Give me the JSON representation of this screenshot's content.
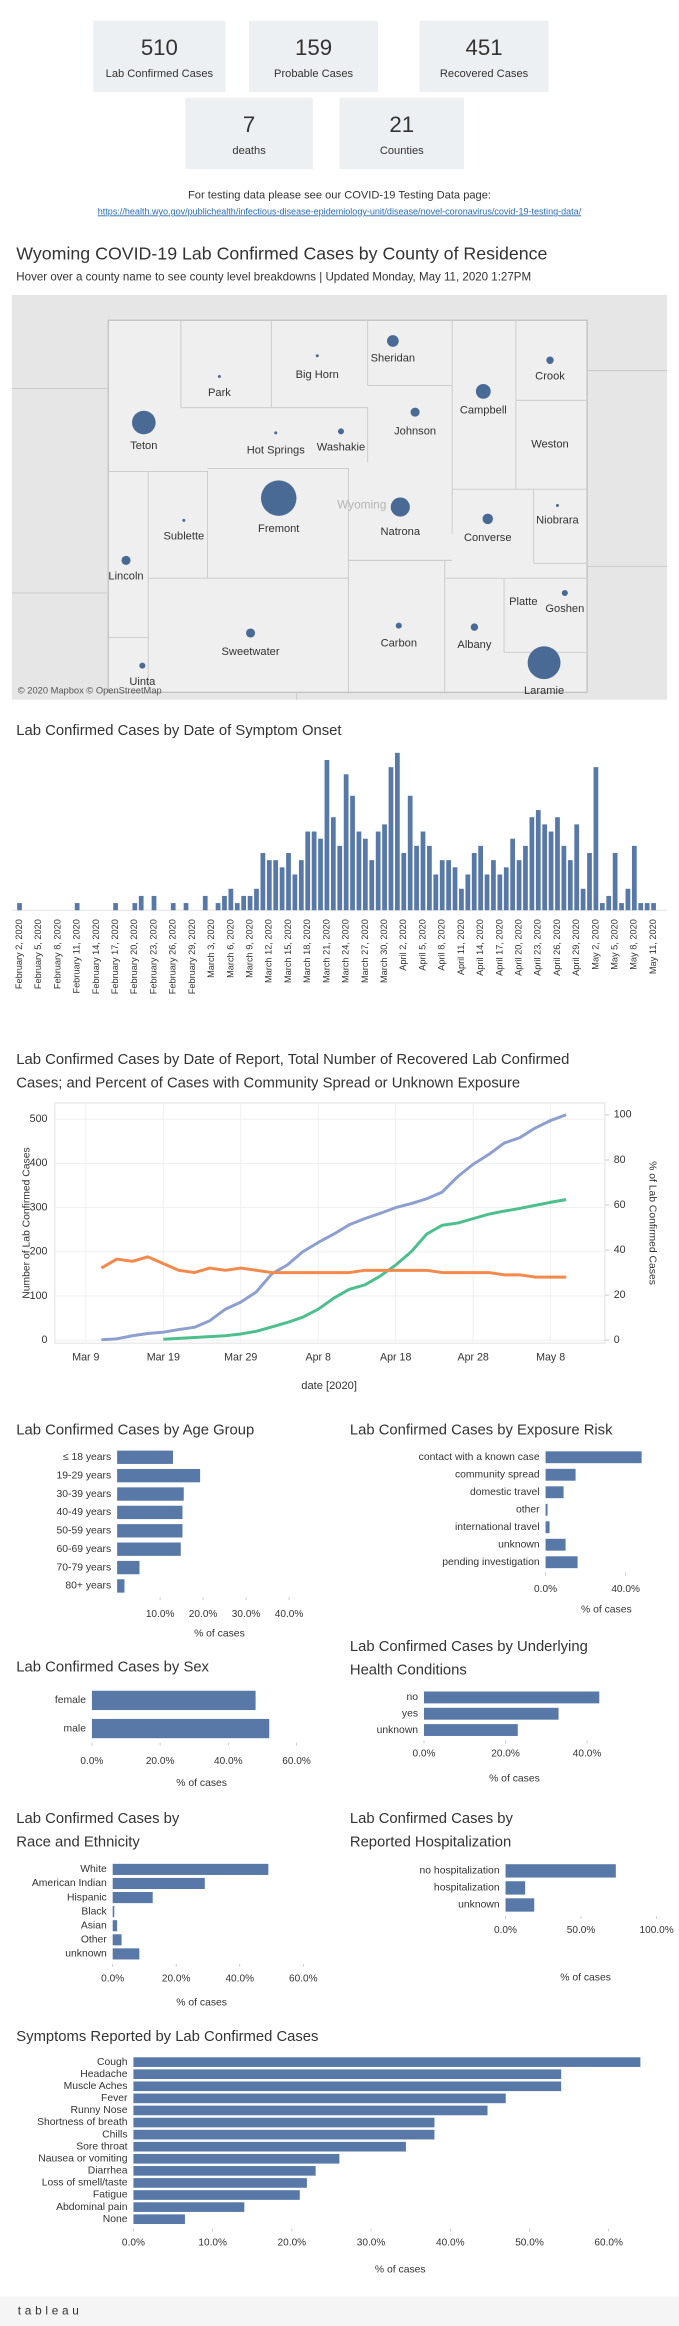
{
  "kpis": [
    {
      "value": 510,
      "label": "Lab Confirmed Cases"
    },
    {
      "value": 159,
      "label": "Probable Cases"
    },
    {
      "value": 451,
      "label": "Recovered Cases"
    },
    {
      "value": 7,
      "label": "deaths"
    },
    {
      "value": 21,
      "label": "Counties"
    }
  ],
  "testing": {
    "text": "For testing data please see our COVID-19 Testing Data page:",
    "link": "https://health.wyo.gov/publichealth/infectious-disease-epidemiology-unit/disease/novel-coronavirus/covid-19-testing-data/"
  },
  "map": {
    "title": "Wyoming COVID-19 Lab Confirmed Cases by County of Residence",
    "subtitle": "Hover over a county name to see county level breakdowns | Updated Monday, May 11, 2020 1:27PM",
    "state_label": "Wyoming",
    "attribution": "© 2020 Mapbox © OpenStreetMap",
    "color": "#4a6a96",
    "counties": [
      {
        "name": "Sheridan",
        "value": 15
      },
      {
        "name": "Big Horn",
        "value": 1
      },
      {
        "name": "Crook",
        "value": 6
      },
      {
        "name": "Park",
        "value": 1
      },
      {
        "name": "Campbell",
        "value": 24
      },
      {
        "name": "Teton",
        "value": 61
      },
      {
        "name": "Johnson",
        "value": 9
      },
      {
        "name": "Washakie",
        "value": 4
      },
      {
        "name": "Hot Springs",
        "value": 1
      },
      {
        "name": "Weston",
        "value": 0
      },
      {
        "name": "Fremont",
        "value": 138
      },
      {
        "name": "Natrona",
        "value": 40
      },
      {
        "name": "Niobrara",
        "value": 1
      },
      {
        "name": "Converse",
        "value": 12
      },
      {
        "name": "Sublette",
        "value": 1
      },
      {
        "name": "Lincoln",
        "value": 9
      },
      {
        "name": "Platte",
        "value": 0
      },
      {
        "name": "Goshen",
        "value": 4
      },
      {
        "name": "Sweetwater",
        "value": 9
      },
      {
        "name": "Carbon",
        "value": 4
      },
      {
        "name": "Albany",
        "value": 6
      },
      {
        "name": "Laramie",
        "value": 118
      },
      {
        "name": "Uinta",
        "value": 4
      }
    ]
  },
  "chart_data": [
    {
      "type": "bar",
      "title": "Lab Confirmed Cases by Date of Symptom Onset",
      "color": "#5878a8",
      "ylim": [
        0,
        23
      ],
      "categories": [
        "February 2, 2020",
        null,
        null,
        "February 5, 2020",
        null,
        null,
        "February 8, 2020",
        null,
        null,
        "February 11, 2020",
        null,
        null,
        "February 14, 2020",
        null,
        null,
        "February 17, 2020",
        null,
        null,
        "February 20, 2020",
        null,
        null,
        "February 23, 2020",
        null,
        null,
        "February 26, 2020",
        null,
        null,
        "February 29, 2020",
        null,
        null,
        "March 3, 2020",
        null,
        null,
        "March 6, 2020",
        null,
        null,
        "March 9, 2020",
        null,
        null,
        "March 12, 2020",
        null,
        null,
        "March 15, 2020",
        null,
        null,
        "March 18, 2020",
        null,
        null,
        "March 21, 2020",
        null,
        null,
        "March 24, 2020",
        null,
        null,
        "March 27, 2020",
        null,
        null,
        "March 30, 2020",
        null,
        null,
        "April 2, 2020",
        null,
        null,
        "April 5, 2020",
        null,
        null,
        "April 8, 2020",
        null,
        null,
        "April 11, 2020",
        null,
        null,
        "April 14, 2020",
        null,
        null,
        "April 17, 2020",
        null,
        null,
        "April 20, 2020",
        null,
        null,
        "April 23, 2020",
        null,
        null,
        "April 26, 2020",
        null,
        null,
        "April 29, 2020",
        null,
        null,
        "May 2, 2020",
        null,
        null,
        "May 5, 2020",
        null,
        null,
        "May 8, 2020",
        null,
        null,
        "May 11, 2020"
      ],
      "values": [
        1,
        0,
        0,
        0,
        0,
        0,
        0,
        0,
        0,
        1,
        0,
        0,
        0,
        0,
        0,
        1,
        0,
        0,
        1,
        2,
        0,
        2,
        0,
        0,
        1,
        0,
        1,
        0,
        0,
        2,
        0,
        1,
        2,
        3,
        1,
        2,
        2,
        3,
        8,
        7,
        7,
        6,
        8,
        5,
        7,
        11,
        11,
        10,
        21,
        13,
        9,
        19,
        16,
        11,
        10,
        7,
        11,
        12,
        20,
        22,
        8,
        16,
        9,
        11,
        9,
        5,
        7,
        7,
        6,
        3,
        5,
        8,
        9,
        5,
        7,
        5,
        6,
        10,
        7,
        9,
        13,
        14,
        12,
        11,
        13,
        9,
        7,
        12,
        3,
        8,
        20,
        1,
        2,
        8,
        1,
        3,
        9,
        1,
        1,
        1
      ]
    },
    {
      "type": "line",
      "title": [
        "Lab Confirmed Cases by Date of Report, Total Number of Recovered Lab Confirmed",
        "Cases; and Percent of Cases with Community Spread or Unknown Exposure"
      ],
      "x_label": "date [2020]",
      "y_label": "Number of Lab Confirmed Cases",
      "y2_label": "% of Lab Confirmed Cases",
      "xlim": [
        "2020-03-05",
        "2020-05-15"
      ],
      "xticks": [
        {
          "value": "2020-03-09",
          "label": "Mar 9"
        },
        {
          "value": "2020-03-19",
          "label": "Mar 19"
        },
        {
          "value": "2020-03-29",
          "label": "Mar 29"
        },
        {
          "value": "2020-04-08",
          "label": "Apr 8"
        },
        {
          "value": "2020-04-18",
          "label": "Apr 18"
        },
        {
          "value": "2020-04-28",
          "label": "Apr 28"
        },
        {
          "value": "2020-05-08",
          "label": "May 8"
        }
      ],
      "ylim": [
        0,
        530
      ],
      "yticks": [
        0,
        100,
        200,
        300,
        400,
        500
      ],
      "y2lim": [
        0,
        104
      ],
      "y2ticks": [
        0,
        20,
        40,
        60,
        80,
        100
      ],
      "grid": true,
      "x": [
        "2020-03-11",
        "2020-03-13",
        "2020-03-15",
        "2020-03-17",
        "2020-03-19",
        "2020-03-21",
        "2020-03-23",
        "2020-03-25",
        "2020-03-27",
        "2020-03-29",
        "2020-03-31",
        "2020-04-02",
        "2020-04-04",
        "2020-04-06",
        "2020-04-08",
        "2020-04-10",
        "2020-04-12",
        "2020-04-14",
        "2020-04-16",
        "2020-04-18",
        "2020-04-20",
        "2020-04-22",
        "2020-04-24",
        "2020-04-26",
        "2020-04-28",
        "2020-04-30",
        "2020-05-02",
        "2020-05-04",
        "2020-05-06",
        "2020-05-08",
        "2020-05-10"
      ],
      "series": [
        {
          "color": "#8d9fd0",
          "values": [
            1,
            3,
            10,
            15,
            18,
            24,
            29,
            44,
            70,
            86,
            109,
            150,
            170,
            200,
            221,
            240,
            261,
            275,
            287,
            300,
            309,
            320,
            335,
            370,
            398,
            420,
            446,
            458,
            480,
            497,
            510
          ]
        },
        {
          "color": "#4dbf8d",
          "values": [
            null,
            null,
            null,
            null,
            2,
            4,
            6,
            8,
            10,
            14,
            20,
            30,
            40,
            52,
            70,
            95,
            115,
            125,
            145,
            170,
            200,
            240,
            260,
            265,
            275,
            285,
            292,
            298,
            305,
            312,
            318
          ]
        },
        {
          "color": "#f4894b",
          "axis": "y2",
          "values": [
            32,
            36,
            35,
            37,
            34,
            31,
            30,
            32,
            31,
            32,
            31,
            30,
            30,
            30,
            30,
            30,
            30,
            31,
            31,
            31,
            31,
            31,
            30,
            30,
            30,
            30,
            29,
            29,
            28,
            28,
            28
          ]
        }
      ]
    },
    {
      "type": "bar",
      "horizontal": true,
      "title": "Lab Confirmed Cases by Age Group",
      "color": "#5878a8",
      "x_label": "% of cases",
      "categories": [
        "≤ 18 years",
        "19-29 years",
        "30-39 years",
        "40-49 years",
        "50-59 years",
        "60-69 years",
        "70-79 years",
        "80+ years"
      ],
      "values": [
        13,
        19.3,
        15.5,
        15.2,
        15.2,
        14.8,
        5.2,
        1.7
      ],
      "xlim": [
        0,
        50
      ],
      "xticks": [
        {
          "value": 10,
          "label": "10.0%"
        },
        {
          "value": 20,
          "label": "20.0%"
        },
        {
          "value": 30,
          "label": "30.0%"
        },
        {
          "value": 40,
          "label": "40.0%"
        }
      ]
    },
    {
      "type": "bar",
      "horizontal": true,
      "title": "Lab Confirmed Cases by Exposure Risk",
      "color": "#5878a8",
      "x_label": "% of cases",
      "categories": [
        "contact with a known case",
        "community spread",
        "domestic travel",
        "other",
        "international travel",
        "unknown",
        "pending investigation"
      ],
      "values": [
        48,
        15,
        9,
        1,
        2,
        10,
        16
      ],
      "xlim": [
        0,
        60
      ],
      "xticks": [
        {
          "value": 0,
          "label": "0.0%"
        },
        {
          "value": 40,
          "label": "40.0%"
        }
      ]
    },
    {
      "type": "bar",
      "horizontal": true,
      "title": "Lab Confirmed Cases by Sex",
      "color": "#5878a8",
      "x_label": "% of cases",
      "categories": [
        "female",
        "male"
      ],
      "values": [
        48,
        52
      ],
      "xlim": [
        0,
        70
      ],
      "xticks": [
        {
          "value": 0,
          "label": "0.0%"
        },
        {
          "value": 20,
          "label": "20.0%"
        },
        {
          "value": 40,
          "label": "40.0%"
        },
        {
          "value": 60,
          "label": "60.0%"
        }
      ]
    },
    {
      "type": "bar",
      "horizontal": true,
      "title": [
        "Lab Confirmed Cases by Underlying",
        "Health Conditions"
      ],
      "color": "#5878a8",
      "x_label": "% of cases",
      "categories": [
        "no",
        "yes",
        "unknown"
      ],
      "values": [
        43,
        33,
        23
      ],
      "xlim": [
        0,
        60
      ],
      "xticks": [
        {
          "value": 0,
          "label": "0.0%"
        },
        {
          "value": 20,
          "label": "20.0%"
        },
        {
          "value": 40,
          "label": "40.0%"
        }
      ]
    },
    {
      "type": "bar",
      "horizontal": true,
      "title": [
        "Lab Confirmed Cases by",
        "Race and Ethnicity"
      ],
      "color": "#5878a8",
      "x_label": "% of cases",
      "categories": [
        "White",
        "American Indian",
        "Hispanic",
        "Black",
        "Asian",
        "Other",
        "unknown"
      ],
      "values": [
        49,
        29,
        12.6,
        0.5,
        1.4,
        2.8,
        8.4
      ],
      "xlim": [
        0,
        70
      ],
      "xticks": [
        {
          "value": 0,
          "label": "0.0%"
        },
        {
          "value": 20,
          "label": "20.0%"
        },
        {
          "value": 40,
          "label": "40.0%"
        },
        {
          "value": 60,
          "label": "60.0%"
        }
      ]
    },
    {
      "type": "bar",
      "horizontal": true,
      "title": [
        "Lab Confirmed Cases by",
        "Reported Hospitalization"
      ],
      "color": "#5878a8",
      "x_label": "% of cases",
      "categories": [
        "no hospitalization",
        "hospitalization",
        "unknown"
      ],
      "values": [
        73,
        13,
        19
      ],
      "xlim": [
        0,
        105
      ],
      "xticks": [
        {
          "value": 0,
          "label": "0.0%"
        },
        {
          "value": 50,
          "label": "50.0%"
        },
        {
          "value": 100,
          "label": "100.0%"
        }
      ]
    },
    {
      "type": "bar",
      "horizontal": true,
      "title": "Symptoms Reported by Lab Confirmed Cases",
      "color": "#5878a8",
      "x_label": "% of cases",
      "categories": [
        "Cough",
        "Headache",
        "Muscle Aches",
        "Fever",
        "Runny Nose",
        "Shortness of breath",
        "Chills",
        "Sore throat",
        "Nausea or vomiting",
        "Diarrhea",
        "Loss of smell/taste",
        "Fatigue",
        "Abdominal pain",
        "None"
      ],
      "values": [
        64,
        54,
        54,
        47,
        44.7,
        38,
        38,
        34.4,
        26,
        23,
        21.9,
        21,
        14,
        6.5
      ],
      "xlim": [
        0,
        67
      ],
      "xticks": [
        {
          "value": 0,
          "label": "0.0%"
        },
        {
          "value": 10,
          "label": "10.0%"
        },
        {
          "value": 20,
          "label": "20.0%"
        },
        {
          "value": 30,
          "label": "30.0%"
        },
        {
          "value": 40,
          "label": "40.0%"
        },
        {
          "value": 50,
          "label": "50.0%"
        },
        {
          "value": 60,
          "label": "60.0%"
        }
      ]
    }
  ],
  "footer": {
    "logo": "tableau"
  }
}
